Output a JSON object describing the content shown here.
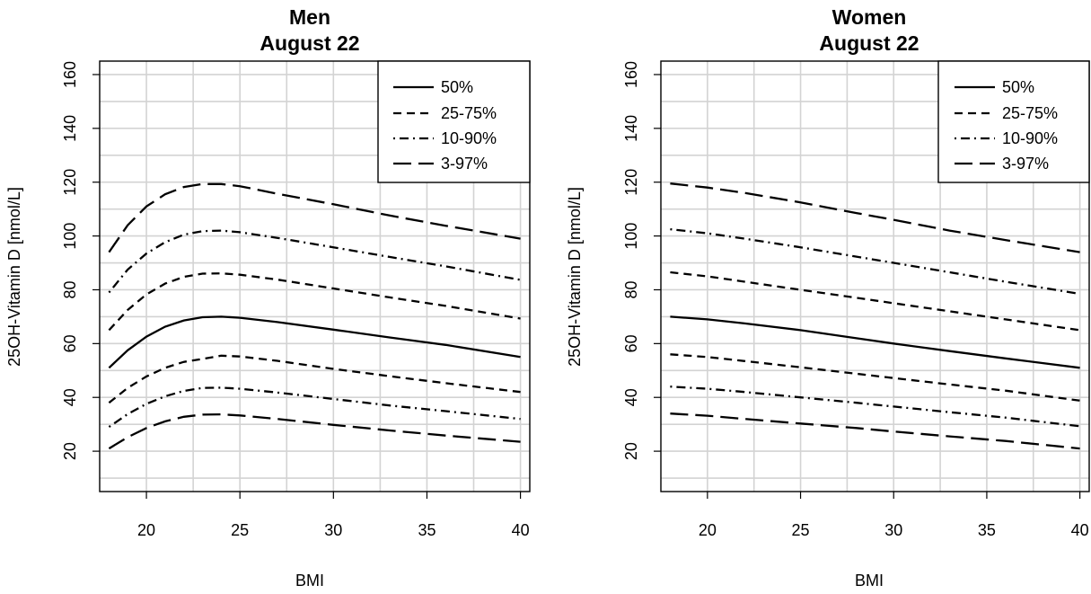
{
  "chart_data": [
    {
      "type": "line",
      "title": "Men",
      "subtitle": "August 22",
      "xlabel": "BMI",
      "ylabel": "25OH-Vitamin D [nmol/L]",
      "xlim": [
        17.5,
        40.5
      ],
      "ylim": [
        5,
        165
      ],
      "xticks": [
        20,
        25,
        30,
        35,
        40
      ],
      "yticks": [
        20,
        40,
        60,
        80,
        100,
        120,
        140,
        160
      ],
      "grid": true,
      "legend_position": "top-right",
      "series": [
        {
          "name": "97%",
          "style": "longdash",
          "x": [
            18,
            19,
            20,
            21,
            22,
            23,
            24,
            25,
            27,
            30,
            33,
            36,
            40
          ],
          "y": [
            94,
            104,
            111,
            115.5,
            118.2,
            119.3,
            119.3,
            118.5,
            115.7,
            111.8,
            107.6,
            103.8,
            99
          ]
        },
        {
          "name": "90%",
          "style": "dotdash",
          "x": [
            18,
            19,
            20,
            21,
            22,
            23,
            24,
            25,
            27,
            30,
            33,
            36,
            40
          ],
          "y": [
            79,
            87.5,
            93.5,
            97.7,
            100.5,
            101.8,
            102,
            101.4,
            99.3,
            95.8,
            92.2,
            88.7,
            83.7
          ]
        },
        {
          "name": "75%",
          "style": "dashed",
          "x": [
            18,
            19,
            20,
            21,
            22,
            23,
            24,
            25,
            27,
            30,
            33,
            36,
            40
          ],
          "y": [
            65,
            72.5,
            78.3,
            82.3,
            84.8,
            86,
            86.1,
            85.6,
            83.8,
            80.5,
            77.2,
            74,
            69.3
          ]
        },
        {
          "name": "50%",
          "style": "solid",
          "x": [
            18,
            19,
            20,
            21,
            22,
            23,
            24,
            25,
            27,
            30,
            33,
            36,
            40
          ],
          "y": [
            51,
            57.5,
            62.6,
            66.3,
            68.6,
            69.8,
            70,
            69.6,
            68,
            65.2,
            62.3,
            59.5,
            55
          ]
        },
        {
          "name": "25%",
          "style": "dashed",
          "x": [
            18,
            19,
            20,
            21,
            22,
            23,
            24,
            25,
            27,
            30,
            33,
            36,
            40
          ],
          "y": [
            38,
            43.5,
            47.8,
            51,
            53.2,
            54.3,
            55.5,
            55.2,
            53.6,
            50.6,
            47.9,
            45.3,
            42
          ]
        },
        {
          "name": "10%",
          "style": "dotdash",
          "x": [
            18,
            19,
            20,
            21,
            22,
            23,
            24,
            25,
            27,
            30,
            33,
            36,
            40
          ],
          "y": [
            29,
            33.8,
            37.6,
            40.4,
            42.4,
            43.5,
            43.6,
            43.2,
            41.8,
            39.4,
            37,
            34.9,
            32
          ]
        },
        {
          "name": "3%",
          "style": "longdash",
          "x": [
            18,
            19,
            20,
            21,
            22,
            23,
            24,
            25,
            27,
            30,
            33,
            36,
            40
          ],
          "y": [
            21,
            25.2,
            28.6,
            31.1,
            32.8,
            33.6,
            33.7,
            33.3,
            32,
            29.8,
            27.7,
            25.8,
            23.5
          ]
        }
      ]
    },
    {
      "type": "line",
      "title": "Women",
      "subtitle": "August 22",
      "xlabel": "BMI",
      "ylabel": "25OH-Vitamin D [nmol/L]",
      "xlim": [
        17.5,
        40.5
      ],
      "ylim": [
        5,
        165
      ],
      "xticks": [
        20,
        25,
        30,
        35,
        40
      ],
      "yticks": [
        20,
        40,
        60,
        80,
        100,
        120,
        140,
        160
      ],
      "grid": true,
      "legend_position": "top-right",
      "series": [
        {
          "name": "97%",
          "style": "longdash",
          "x": [
            18,
            20,
            22,
            25,
            28,
            30,
            33,
            36,
            40
          ],
          "y": [
            119.5,
            118,
            116,
            112.5,
            108.5,
            106,
            102,
            98.5,
            94
          ]
        },
        {
          "name": "90%",
          "style": "dotdash",
          "x": [
            18,
            20,
            22,
            25,
            28,
            30,
            33,
            36,
            40
          ],
          "y": [
            102.5,
            101,
            99,
            95.8,
            92.3,
            90,
            86.5,
            83,
            78.5
          ]
        },
        {
          "name": "75%",
          "style": "dashed",
          "x": [
            18,
            20,
            22,
            25,
            28,
            30,
            33,
            36,
            40
          ],
          "y": [
            86.5,
            85,
            83,
            80,
            77,
            75,
            72,
            69,
            65
          ]
        },
        {
          "name": "50%",
          "style": "solid",
          "x": [
            18,
            20,
            22,
            25,
            28,
            30,
            33,
            36,
            40
          ],
          "y": [
            70,
            69,
            67.5,
            65,
            62,
            60,
            57.2,
            54.5,
            51
          ]
        },
        {
          "name": "25%",
          "style": "dashed",
          "x": [
            18,
            20,
            22,
            25,
            28,
            30,
            33,
            36,
            40
          ],
          "y": [
            56,
            55,
            53.5,
            51.2,
            48.8,
            47.2,
            44.8,
            42.5,
            38.8
          ]
        },
        {
          "name": "10%",
          "style": "dotdash",
          "x": [
            18,
            20,
            22,
            25,
            28,
            30,
            33,
            36,
            40
          ],
          "y": [
            44,
            43.2,
            42,
            40,
            38,
            36.6,
            34.5,
            32.5,
            29.3
          ]
        },
        {
          "name": "3%",
          "style": "longdash",
          "x": [
            18,
            20,
            22,
            25,
            28,
            30,
            33,
            36,
            40
          ],
          "y": [
            34,
            33.2,
            32,
            30.3,
            28.6,
            27.3,
            25.5,
            23.8,
            21
          ]
        }
      ]
    }
  ],
  "legend": [
    {
      "label": "50%",
      "style": "solid"
    },
    {
      "label": "25-75%",
      "style": "dashed"
    },
    {
      "label": "10-90%",
      "style": "dotdash"
    },
    {
      "label": "3-97%",
      "style": "longdash"
    }
  ]
}
